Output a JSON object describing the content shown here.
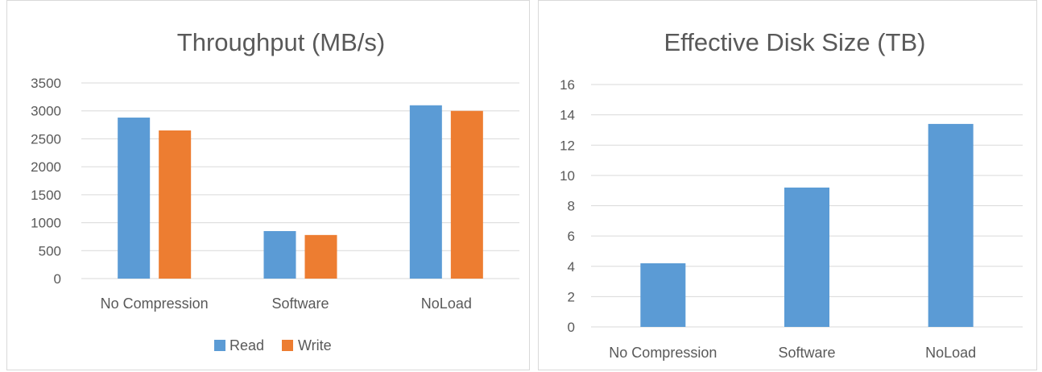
{
  "chart_data": [
    {
      "type": "bar",
      "title": "Throughput (MB/s)",
      "categories": [
        "No Compression",
        "Software",
        "NoLoad"
      ],
      "series": [
        {
          "name": "Read",
          "values": [
            2880,
            850,
            3100
          ],
          "color": "#5b9bd5"
        },
        {
          "name": "Write",
          "values": [
            2650,
            780,
            3000
          ],
          "color": "#ed7d31"
        }
      ],
      "ylim": [
        0,
        3500
      ],
      "yticks": [
        0,
        500,
        1000,
        1500,
        2000,
        2500,
        3000,
        3500
      ],
      "grid": true,
      "legend": "bottom"
    },
    {
      "type": "bar",
      "title": "Effective Disk Size (TB)",
      "categories": [
        "No Compression",
        "Software",
        "NoLoad"
      ],
      "series": [
        {
          "values": [
            4.2,
            9.2,
            13.4
          ],
          "color": "#5b9bd5"
        }
      ],
      "ylim": [
        0,
        16
      ],
      "yticks": [
        0,
        2,
        4,
        6,
        8,
        10,
        12,
        14,
        16
      ],
      "grid": true,
      "legend": "none"
    }
  ]
}
